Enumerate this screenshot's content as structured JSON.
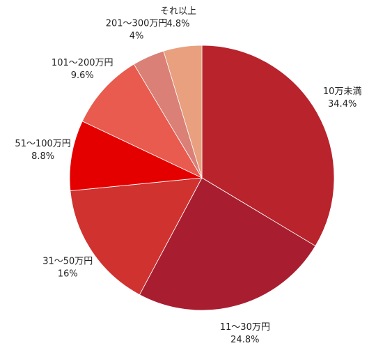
{
  "chart_data": {
    "type": "pie",
    "categories": [
      "10万未満",
      "11〜30万円",
      "31〜50万円",
      "51〜100万円",
      "101〜200万円",
      "201〜300万円",
      "それ以上"
    ],
    "values": [
      34.4,
      24.8,
      16,
      8.8,
      9.6,
      4,
      4.8
    ],
    "value_labels": [
      "34.4%",
      "24.8%",
      "16%",
      "8.8%",
      "9.6%",
      "4%",
      "4.8%"
    ],
    "colors": [
      "#b8232c",
      "#a81e30",
      "#d0322f",
      "#e50000",
      "#e85b4e",
      "#da8077",
      "#e8a07f"
    ]
  }
}
